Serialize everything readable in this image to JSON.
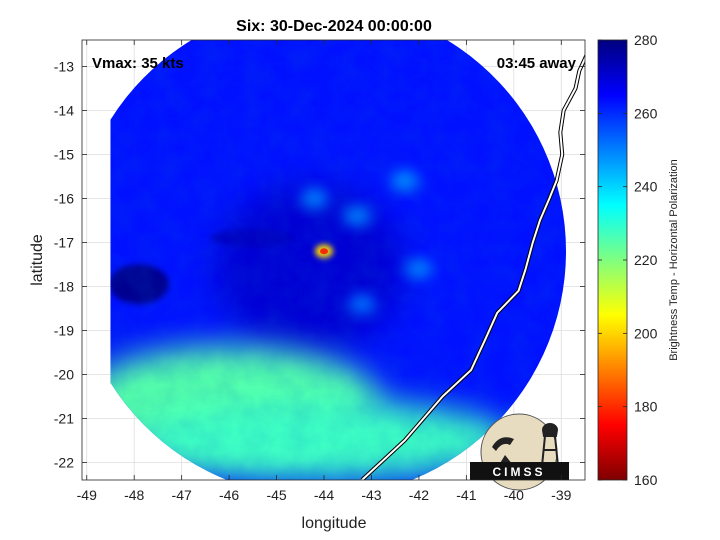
{
  "chart_data": {
    "type": "heatmap",
    "title": "Six: 30-Dec-2024 00:00:00",
    "xlabel": "longitude",
    "ylabel": "latitude",
    "xlim": [
      -49.1,
      -38.5
    ],
    "ylim": [
      -22.4,
      -12.4
    ],
    "x_ticks": [
      "-49",
      "-48",
      "-47",
      "-46",
      "-45",
      "-44",
      "-43",
      "-42",
      "-41",
      "-40",
      "-39"
    ],
    "y_ticks": [
      "-13",
      "-14",
      "-15",
      "-16",
      "-17",
      "-18",
      "-19",
      "-20",
      "-21",
      "-22"
    ],
    "grid": true,
    "annotations": {
      "left": "Vmax: 35 kts",
      "right": "03:45 away"
    },
    "colorbar": {
      "label": "Brightness Temp - Horizontal Polarization",
      "min": 160,
      "max": 280,
      "ticks": [
        "280",
        "260",
        "240",
        "220",
        "200",
        "180",
        "160"
      ],
      "colormap": [
        "#7f0000",
        "#ff0000",
        "#ff8000",
        "#ffff00",
        "#80ff80",
        "#00ffff",
        "#0080ff",
        "#0000ff",
        "#00007f"
      ]
    },
    "swath": {
      "center_lon": -44.1,
      "center_lat": -17.2,
      "radius_deg": 5.2,
      "west_edge_lon": -48.5
    },
    "features": [
      {
        "name": "background",
        "value": 263
      },
      {
        "name": "inner dark core",
        "lon": -44.3,
        "lat": -17.6,
        "value": 270
      },
      {
        "name": "dark blob",
        "lon": -47.9,
        "lat": -17.95,
        "value": 278
      },
      {
        "name": "dark band",
        "lon": -45.5,
        "lat": -16.9,
        "value": 272
      },
      {
        "name": "warm spot",
        "lon": -44.0,
        "lat": -17.2,
        "value": 200
      },
      {
        "name": "cyan cloud",
        "lon": -42.3,
        "lat": -15.6,
        "value": 248
      },
      {
        "name": "cyan cloud",
        "lon": -43.3,
        "lat": -16.4,
        "value": 250
      },
      {
        "name": "cyan cloud",
        "lon": -44.2,
        "lat": -16.0,
        "value": 250
      },
      {
        "name": "cyan cloud",
        "lon": -42.0,
        "lat": -17.6,
        "value": 250
      },
      {
        "name": "cyan cloud",
        "lon": -43.2,
        "lat": -18.4,
        "value": 252
      },
      {
        "name": "coastal south band",
        "lon": -46.0,
        "lat": -20.6,
        "value": 225
      },
      {
        "name": "southern band",
        "lon": -44.0,
        "lat": -21.5,
        "value": 228
      }
    ],
    "coastline": [
      [
        -38.45,
        -12.7
      ],
      [
        -38.62,
        -13.1
      ],
      [
        -38.7,
        -13.5
      ],
      [
        -38.95,
        -14.0
      ],
      [
        -39.02,
        -14.5
      ],
      [
        -38.98,
        -15.0
      ],
      [
        -39.1,
        -15.6
      ],
      [
        -39.25,
        -16.0
      ],
      [
        -39.45,
        -16.5
      ],
      [
        -39.6,
        -17.0
      ],
      [
        -39.75,
        -17.6
      ],
      [
        -39.9,
        -18.1
      ],
      [
        -40.35,
        -18.6
      ],
      [
        -40.6,
        -19.2
      ],
      [
        -40.9,
        -19.9
      ],
      [
        -41.5,
        -20.5
      ],
      [
        -41.9,
        -21.0
      ],
      [
        -42.3,
        -21.5
      ],
      [
        -42.8,
        -22.0
      ],
      [
        -43.2,
        -22.4
      ]
    ],
    "logo": {
      "text": "CIMSS"
    }
  }
}
